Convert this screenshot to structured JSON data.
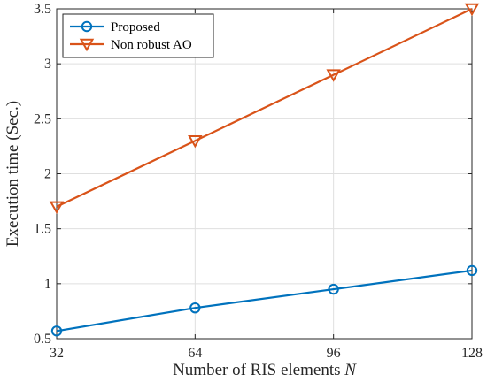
{
  "chart_data": {
    "type": "line",
    "x": [
      32,
      64,
      96,
      128
    ],
    "xticks": [
      "32",
      "64",
      "96",
      "128"
    ],
    "yticks": [
      "0.5",
      "1",
      "1.5",
      "2",
      "2.5",
      "3",
      "3.5"
    ],
    "xlim": [
      32,
      128
    ],
    "ylim": [
      0.5,
      3.5
    ],
    "xlabel": "Number of RIS elements",
    "xlabel_var": "N",
    "ylabel": "Execution time (Sec.)",
    "grid": true,
    "legend_position": "top-left",
    "series": [
      {
        "name": "Proposed",
        "color": "#0072BD",
        "marker": "circle",
        "values": [
          0.57,
          0.78,
          0.95,
          1.12
        ]
      },
      {
        "name": "Non robust AO",
        "color": "#D95319",
        "marker": "triangle-down",
        "values": [
          1.7,
          2.3,
          2.9,
          3.5
        ]
      }
    ]
  }
}
